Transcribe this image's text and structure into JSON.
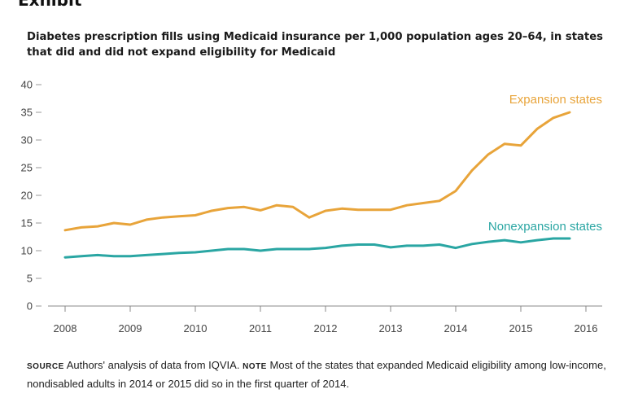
{
  "header": {
    "cropped_title": "Exhibit"
  },
  "chart_data": {
    "type": "line",
    "title": "Diabetes prescription fills using Medicaid insurance per 1,000 population ages 20–64, in states that did and did not expand eligibility for Medicaid",
    "xlabel": "",
    "ylabel": "",
    "xlim": [
      2008,
      2016
    ],
    "ylim": [
      0,
      40
    ],
    "x_ticks": [
      "2008",
      "2009",
      "2010",
      "2011",
      "2012",
      "2013",
      "2014",
      "2015",
      "2016"
    ],
    "y_ticks": [
      "0",
      "5",
      "10",
      "15",
      "20",
      "25",
      "30",
      "35",
      "40"
    ],
    "grid": false,
    "series": [
      {
        "name": "Expansion states",
        "color": "#e8a43a",
        "x": [
          2008.0,
          2008.25,
          2008.5,
          2008.75,
          2009.0,
          2009.25,
          2009.5,
          2009.75,
          2010.0,
          2010.25,
          2010.5,
          2010.75,
          2011.0,
          2011.25,
          2011.5,
          2011.75,
          2012.0,
          2012.25,
          2012.5,
          2012.75,
          2013.0,
          2013.25,
          2013.5,
          2013.75,
          2014.0,
          2014.25,
          2014.5,
          2014.75,
          2015.0,
          2015.25,
          2015.5,
          2015.75
        ],
        "values": [
          13.7,
          14.2,
          14.4,
          15.0,
          14.7,
          15.6,
          16.0,
          16.2,
          16.4,
          17.2,
          17.7,
          17.9,
          17.3,
          18.2,
          17.9,
          16.0,
          17.2,
          17.6,
          17.4,
          17.4,
          17.4,
          18.2,
          18.6,
          19.0,
          20.8,
          24.5,
          27.4,
          29.3,
          29.0,
          32.0,
          34.0,
          35.0
        ]
      },
      {
        "name": "Nonexpansion states",
        "color": "#2aa6a3",
        "x": [
          2008.0,
          2008.25,
          2008.5,
          2008.75,
          2009.0,
          2009.25,
          2009.5,
          2009.75,
          2010.0,
          2010.25,
          2010.5,
          2010.75,
          2011.0,
          2011.25,
          2011.5,
          2011.75,
          2012.0,
          2012.25,
          2012.5,
          2012.75,
          2013.0,
          2013.25,
          2013.5,
          2013.75,
          2014.0,
          2014.25,
          2014.5,
          2014.75,
          2015.0,
          2015.25,
          2015.5,
          2015.75
        ],
        "values": [
          8.8,
          9.0,
          9.2,
          9.0,
          9.0,
          9.2,
          9.4,
          9.6,
          9.7,
          10.0,
          10.3,
          10.3,
          10.0,
          10.3,
          10.3,
          10.3,
          10.5,
          10.9,
          11.1,
          11.1,
          10.6,
          10.9,
          10.9,
          11.1,
          10.5,
          11.2,
          11.6,
          11.9,
          11.5,
          11.9,
          12.2,
          12.2
        ]
      }
    ]
  },
  "note": {
    "source_label": "Source",
    "source_text": "Authors' analysis of data from IQVIA.",
    "note_label": "Note",
    "note_text": "Most of the states that expanded Medicaid eligibility among low-income, nondisabled adults in 2014 or 2015 did so in the first quarter of 2014."
  }
}
